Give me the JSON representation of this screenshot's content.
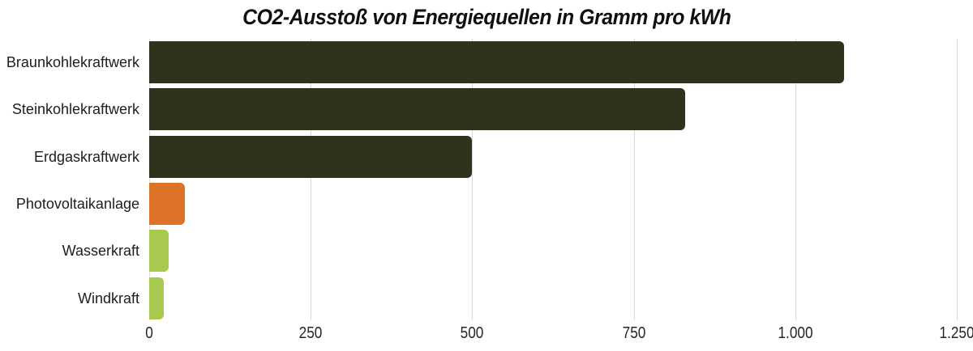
{
  "chart_data": {
    "type": "bar",
    "orientation": "horizontal",
    "title": "CO2-Ausstoß von Energiequellen in Gramm pro kWh",
    "unit": "Gramm pro kWh",
    "categories": [
      "Braunkohlekraftwerk",
      "Steinkohlekraftwerk",
      "Erdgaskraftwerk",
      "Photovoltaikanlage",
      "Wasserkraft",
      "Windkraft"
    ],
    "values": [
      1075,
      830,
      500,
      55,
      30,
      23
    ],
    "bar_colors": [
      "#2f321d",
      "#2f321d",
      "#2f321d",
      "#dd7327",
      "#a6c94e",
      "#a6c94e"
    ],
    "xlim": [
      0,
      1250
    ],
    "x_ticks": [
      0,
      250,
      500,
      750,
      1000,
      1250
    ],
    "x_tick_labels": [
      "0",
      "250",
      "500",
      "750",
      "1.000",
      "1.250"
    ],
    "grid": "vertical-only",
    "legend": false,
    "colors": {
      "fossil_bar": "#2f321d",
      "solar_bar": "#dd7327",
      "green_bar": "#a6c94e",
      "gridline": "#d9d9d9",
      "text": "#1d1d1b",
      "background": "#ffffff"
    }
  }
}
